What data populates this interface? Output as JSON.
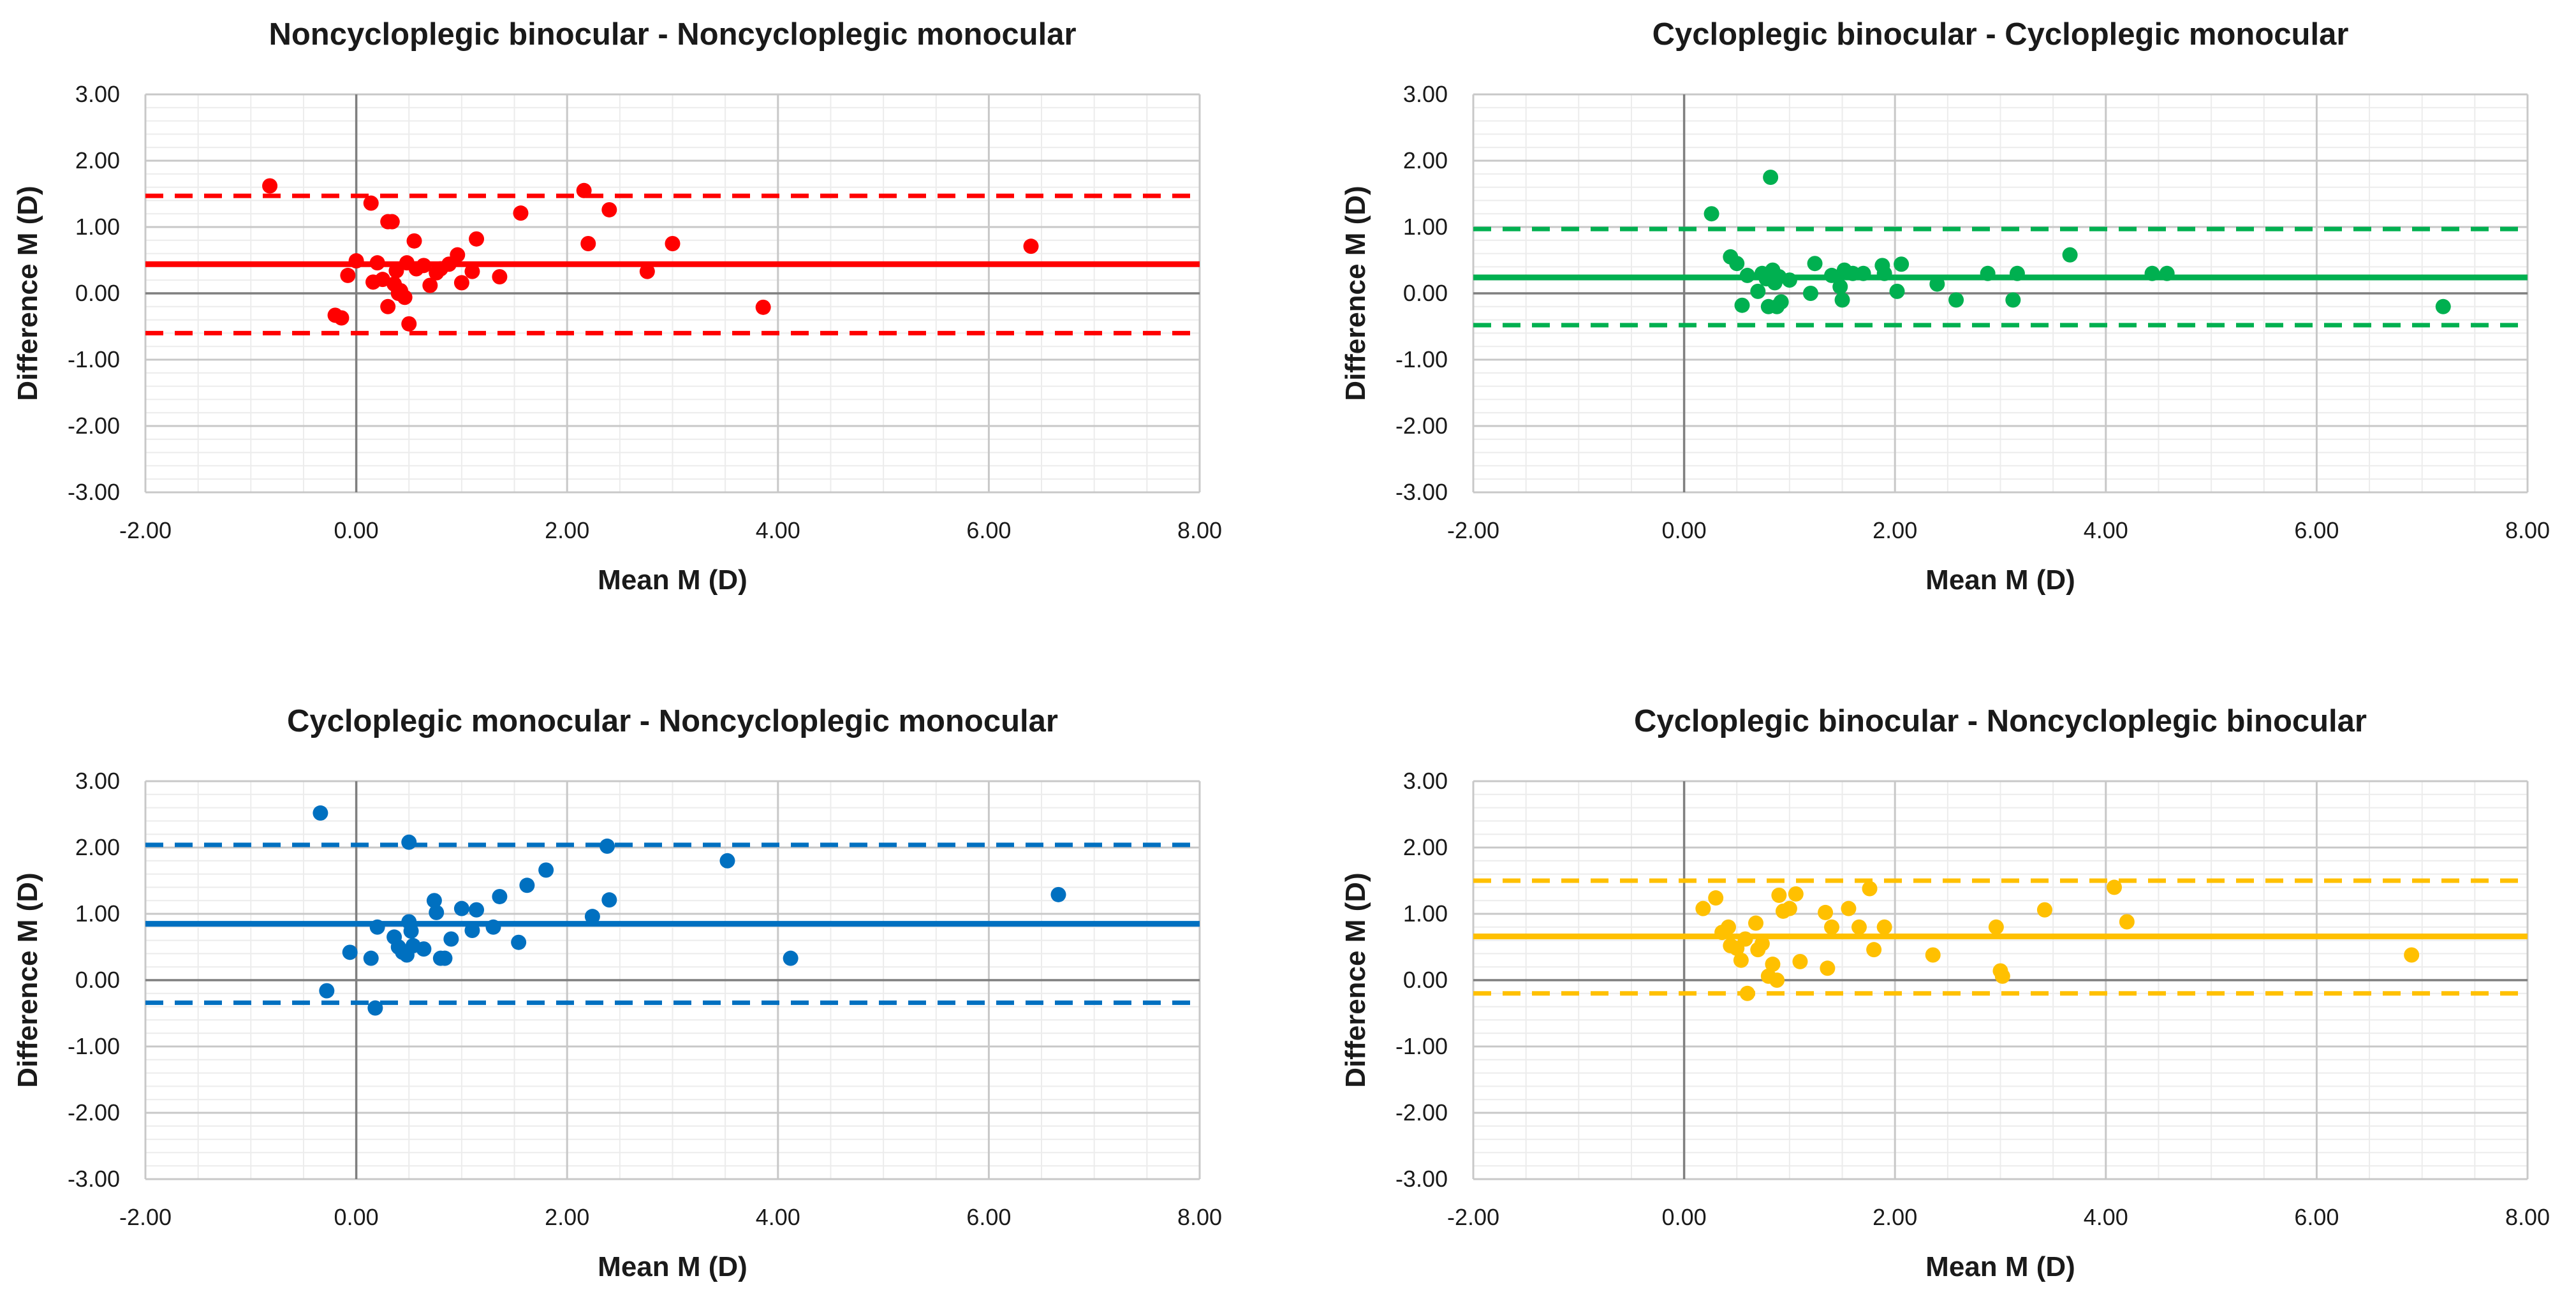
{
  "chart_data": [
    {
      "type": "scatter",
      "title": "Noncycloplegic binocular - Noncycloplegic monocular",
      "xlabel": "Mean M (D)",
      "ylabel": "Difference M (D)",
      "xlim": [
        -2,
        8
      ],
      "ylim": [
        -3,
        3
      ],
      "xticks": [
        "-2.00",
        "0.00",
        "2.00",
        "4.00",
        "6.00",
        "8.00"
      ],
      "yticks": [
        "3.00",
        "2.00",
        "1.00",
        "0.00",
        "-1.00",
        "-2.00",
        "-3.00"
      ],
      "grid": true,
      "color": "#ff0000",
      "mean_diff": 0.44,
      "loa_upper": 1.47,
      "loa_lower": -0.6,
      "x": [
        -0.82,
        -0.2,
        -0.14,
        -0.08,
        0.0,
        0.14,
        0.16,
        0.2,
        0.25,
        0.3,
        0.3,
        0.34,
        0.36,
        0.38,
        0.4,
        0.42,
        0.46,
        0.48,
        0.5,
        0.55,
        0.57,
        0.64,
        0.7,
        0.76,
        0.8,
        0.88,
        0.96,
        1.0,
        1.1,
        1.14,
        1.36,
        1.56,
        2.16,
        2.2,
        2.4,
        2.76,
        3.0,
        3.86,
        6.4
      ],
      "y": [
        1.62,
        -0.33,
        -0.37,
        0.27,
        0.49,
        1.36,
        0.17,
        0.46,
        0.21,
        1.08,
        -0.2,
        1.08,
        0.14,
        0.34,
        0.0,
        0.04,
        -0.06,
        0.46,
        -0.46,
        0.79,
        0.37,
        0.42,
        0.12,
        0.31,
        0.37,
        0.44,
        0.58,
        0.16,
        0.33,
        0.82,
        0.25,
        1.21,
        1.55,
        0.75,
        1.26,
        0.33,
        0.75,
        -0.21,
        0.71
      ]
    },
    {
      "type": "scatter",
      "title": "Cycloplegic binocular - Cycloplegic monocular",
      "xlabel": "Mean M (D)",
      "ylabel": "Difference M (D)",
      "xlim": [
        -2,
        8
      ],
      "ylim": [
        -3,
        3
      ],
      "xticks": [
        "-2.00",
        "0.00",
        "2.00",
        "4.00",
        "6.00",
        "8.00"
      ],
      "yticks": [
        "3.00",
        "2.00",
        "1.00",
        "0.00",
        "-1.00",
        "-2.00",
        "-3.00"
      ],
      "grid": true,
      "color": "#00b050",
      "mean_diff": 0.24,
      "loa_upper": 0.97,
      "loa_lower": -0.48,
      "x": [
        0.26,
        0.44,
        0.5,
        0.55,
        0.6,
        0.7,
        0.74,
        0.78,
        0.8,
        0.82,
        0.84,
        0.86,
        0.88,
        0.9,
        0.92,
        1.0,
        1.2,
        1.24,
        1.4,
        1.48,
        1.5,
        1.52,
        1.6,
        1.7,
        1.88,
        1.9,
        2.02,
        2.06,
        2.4,
        2.58,
        2.88,
        3.12,
        3.16,
        3.66,
        4.44,
        4.58,
        7.2
      ],
      "y": [
        1.2,
        0.55,
        0.45,
        -0.18,
        0.27,
        0.03,
        0.3,
        0.22,
        -0.2,
        1.75,
        0.35,
        0.16,
        -0.2,
        0.25,
        -0.13,
        0.2,
        0.0,
        0.45,
        0.27,
        0.1,
        -0.1,
        0.35,
        0.3,
        0.3,
        0.42,
        0.3,
        0.03,
        0.44,
        0.14,
        -0.1,
        0.3,
        -0.1,
        0.3,
        0.58,
        0.3,
        0.3,
        -0.2
      ]
    },
    {
      "type": "scatter",
      "title": "Cycloplegic monocular - Noncycloplegic monocular",
      "xlabel": "Mean M (D)",
      "ylabel": "Difference M (D)",
      "xlim": [
        -2,
        8
      ],
      "ylim": [
        -3,
        3
      ],
      "xticks": [
        "-2.00",
        "0.00",
        "2.00",
        "4.00",
        "6.00",
        "8.00"
      ],
      "yticks": [
        "3.00",
        "2.00",
        "1.00",
        "0.00",
        "-1.00",
        "-2.00",
        "-3.00"
      ],
      "grid": true,
      "color": "#0070c0",
      "mean_diff": 0.85,
      "loa_upper": 2.04,
      "loa_lower": -0.34,
      "x": [
        -0.34,
        -0.28,
        -0.06,
        0.14,
        0.18,
        0.2,
        0.36,
        0.4,
        0.44,
        0.48,
        0.5,
        0.5,
        0.52,
        0.54,
        0.64,
        0.74,
        0.76,
        0.8,
        0.84,
        0.9,
        1.0,
        1.1,
        1.14,
        1.3,
        1.36,
        1.54,
        1.62,
        1.8,
        2.24,
        2.38,
        2.4,
        3.52,
        4.12,
        6.66
      ],
      "y": [
        2.52,
        -0.16,
        0.42,
        0.33,
        -0.42,
        0.8,
        0.65,
        0.5,
        0.42,
        0.38,
        0.88,
        2.08,
        0.74,
        0.52,
        0.47,
        1.2,
        1.02,
        0.33,
        0.33,
        0.62,
        1.08,
        0.75,
        1.06,
        0.8,
        1.26,
        0.57,
        1.43,
        1.66,
        0.96,
        2.02,
        1.21,
        1.8,
        0.33,
        1.29
      ]
    },
    {
      "type": "scatter",
      "title": "Cycloplegic binocular - Noncycloplegic binocular",
      "xlabel": "Mean M (D)",
      "ylabel": "Difference M (D)",
      "xlim": [
        -2,
        8
      ],
      "ylim": [
        -3,
        3
      ],
      "xticks": [
        "-2.00",
        "0.00",
        "2.00",
        "4.00",
        "6.00",
        "8.00"
      ],
      "yticks": [
        "3.00",
        "2.00",
        "1.00",
        "0.00",
        "-1.00",
        "-2.00",
        "-3.00"
      ],
      "grid": true,
      "color": "#ffc000",
      "mean_diff": 0.66,
      "loa_upper": 1.5,
      "loa_lower": -0.2,
      "x": [
        0.18,
        0.3,
        0.36,
        0.42,
        0.44,
        0.5,
        0.54,
        0.58,
        0.6,
        0.68,
        0.7,
        0.74,
        0.8,
        0.84,
        0.88,
        0.9,
        0.94,
        1.0,
        1.06,
        1.1,
        1.34,
        1.36,
        1.4,
        1.56,
        1.66,
        1.76,
        1.8,
        1.9,
        2.36,
        2.96,
        3.0,
        3.02,
        3.42,
        4.08,
        4.2,
        6.9
      ],
      "y": [
        1.08,
        1.24,
        0.72,
        0.8,
        0.52,
        0.48,
        0.3,
        0.62,
        -0.2,
        0.86,
        0.46,
        0.55,
        0.06,
        0.24,
        0.0,
        1.28,
        1.04,
        1.08,
        1.3,
        0.28,
        1.02,
        0.18,
        0.8,
        1.08,
        0.8,
        1.38,
        0.46,
        0.8,
        0.38,
        0.8,
        0.14,
        0.06,
        1.06,
        1.4,
        0.88,
        0.38
      ]
    }
  ]
}
